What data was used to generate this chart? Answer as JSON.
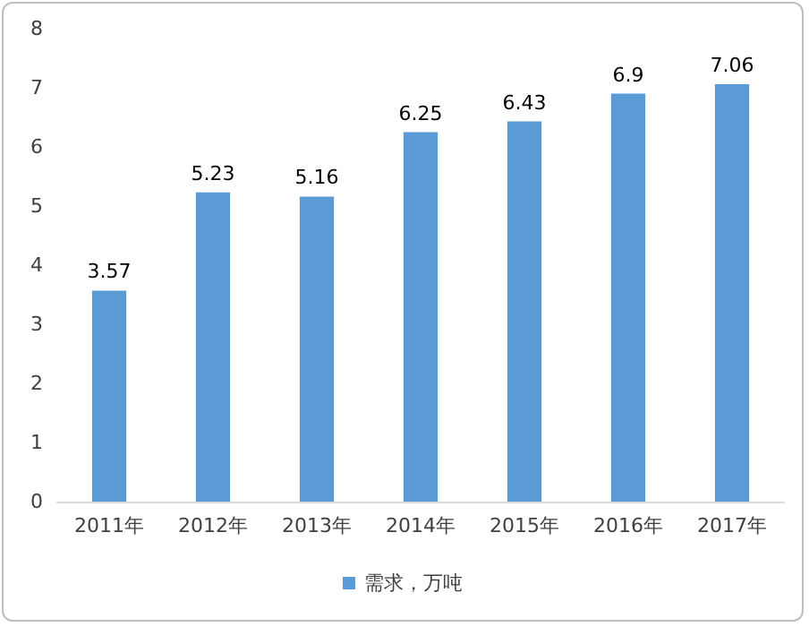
{
  "chart_data": {
    "type": "bar",
    "categories": [
      "2011年",
      "2012年",
      "2013年",
      "2014年",
      "2015年",
      "2016年",
      "2017年"
    ],
    "series": [
      {
        "name": "需求，万吨",
        "color": "#5b9bd5",
        "values": [
          3.57,
          5.23,
          5.16,
          6.25,
          6.43,
          6.9,
          7.06
        ]
      }
    ],
    "ylim": [
      0,
      8
    ],
    "yticks": [
      0,
      1,
      2,
      3,
      4,
      5,
      6,
      7,
      8
    ],
    "grid": false,
    "legend": "bottom",
    "data_labels": true
  }
}
